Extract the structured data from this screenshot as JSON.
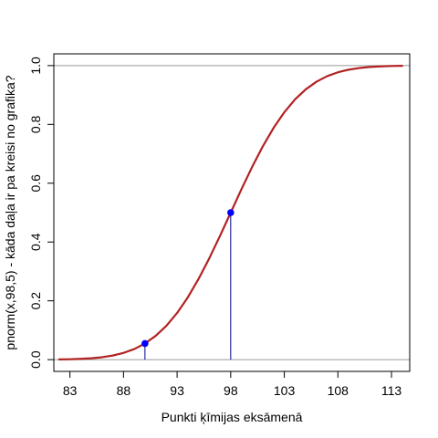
{
  "chart_data": {
    "type": "line",
    "xlabel": "Punkti ķīmijas eksāmenā",
    "ylabel": "pnorm(x,98,5) - kāda daļa ir pa kreisi no grafika?",
    "xlim": [
      81.5,
      114.7
    ],
    "ylim": [
      -0.04,
      1.04
    ],
    "x_ticks": [
      83,
      88,
      93,
      98,
      103,
      108,
      113
    ],
    "y_ticks": [
      0.0,
      0.2,
      0.4,
      0.6,
      0.8,
      1.0
    ],
    "y_tick_labels": [
      "0.0",
      "0.2",
      "0.4",
      "0.6",
      "0.8",
      "1.0"
    ],
    "reference_lines_y": [
      0,
      1
    ],
    "curve": {
      "color": "#b22222",
      "x": [
        82,
        83,
        84,
        85,
        86,
        87,
        88,
        89,
        90,
        91,
        92,
        93,
        94,
        95,
        96,
        97,
        98,
        99,
        100,
        101,
        102,
        103,
        104,
        105,
        106,
        107,
        108,
        109,
        110,
        111,
        112,
        113,
        114
      ],
      "y": [
        0.0007,
        0.0013,
        0.0026,
        0.0047,
        0.0082,
        0.0139,
        0.0228,
        0.0359,
        0.0548,
        0.0808,
        0.1151,
        0.1587,
        0.2119,
        0.2743,
        0.3446,
        0.4207,
        0.5,
        0.5793,
        0.6554,
        0.7257,
        0.7881,
        0.8413,
        0.8849,
        0.9192,
        0.9452,
        0.9641,
        0.9772,
        0.9861,
        0.9918,
        0.9953,
        0.9974,
        0.9987,
        0.9993
      ]
    },
    "points": [
      {
        "x": 90,
        "y": 0.0548
      },
      {
        "x": 98,
        "y": 0.5
      }
    ],
    "point_color": "#0000ff"
  }
}
